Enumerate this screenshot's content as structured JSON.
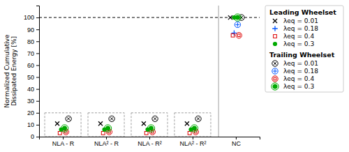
{
  "chart_data": {
    "type": "scatter",
    "categories": [
      "NLA - R",
      "NLA² - R",
      "NLA - R²",
      "NLA² - R²",
      "NC"
    ],
    "ylabel": "Normalized Cumulative\nDissipated Energy [%]",
    "ylim": [
      0,
      110
    ],
    "yticks": [
      0,
      10,
      20,
      30,
      40,
      50,
      60,
      70,
      80,
      90,
      100
    ],
    "grid": false,
    "legend": "right",
    "hline": 100,
    "box_height": 20,
    "boxed": [
      true,
      true,
      true,
      true,
      false
    ],
    "series_groups": [
      {
        "name": "Leading Wheelset",
        "series": [
          {
            "name": "λeq = 0.01",
            "color": "#000000",
            "marker": "x",
            "values": [
              11,
              11,
              11,
              11,
              100
            ]
          },
          {
            "name": "λeq = 0.18",
            "color": "#0055FF",
            "marker": "plus",
            "values": [
              null,
              null,
              null,
              null,
              87
            ]
          },
          {
            "name": "λeq = 0.4",
            "color": "#DD0000",
            "marker": "square",
            "values": [
              3,
              3,
              3,
              3,
              85
            ]
          },
          {
            "name": "λeq = 0.3",
            "color": "#00AA00",
            "marker": "circle",
            "values": [
              6,
              6,
              6,
              6,
              100
            ]
          }
        ]
      },
      {
        "name": "Trailing Wheelset",
        "series": [
          {
            "name": "λeq = 0.01",
            "color": "#000000",
            "marker": "circle-x",
            "values": [
              15,
              15,
              15,
              15,
              100
            ]
          },
          {
            "name": "λeq = 0.18",
            "color": "#0055FF",
            "marker": "circle-plus",
            "values": [
              null,
              null,
              null,
              null,
              94
            ]
          },
          {
            "name": "λeq = 0.4",
            "color": "#DD0000",
            "marker": "circle-square",
            "values": [
              4,
              4,
              4,
              4,
              85
            ]
          },
          {
            "name": "λeq = 0.3",
            "color": "#00AA00",
            "marker": "double-circle",
            "values": [
              7,
              7,
              7,
              7,
              100
            ]
          }
        ]
      }
    ]
  }
}
